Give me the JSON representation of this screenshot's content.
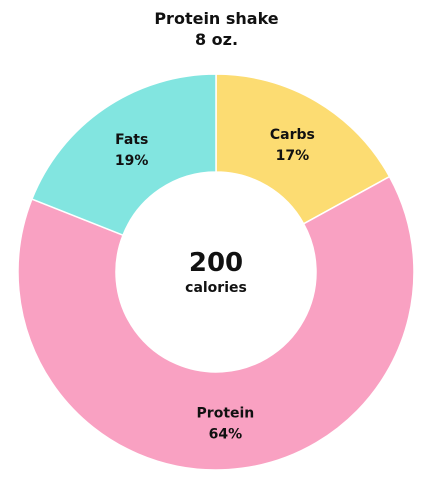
{
  "chart_data": {
    "type": "pie",
    "title": "Protein shake",
    "subtitle": "8 oz.",
    "center_value": "200",
    "center_unit": "calories",
    "categories": [
      "Carbs",
      "Protein",
      "Fats"
    ],
    "values": [
      17,
      64,
      19
    ],
    "value_labels": [
      "17%",
      "64%",
      "19%"
    ],
    "colors": [
      "#fcdc72",
      "#f9a1c2",
      "#82e5e0"
    ],
    "donut": true,
    "legend": "none"
  }
}
